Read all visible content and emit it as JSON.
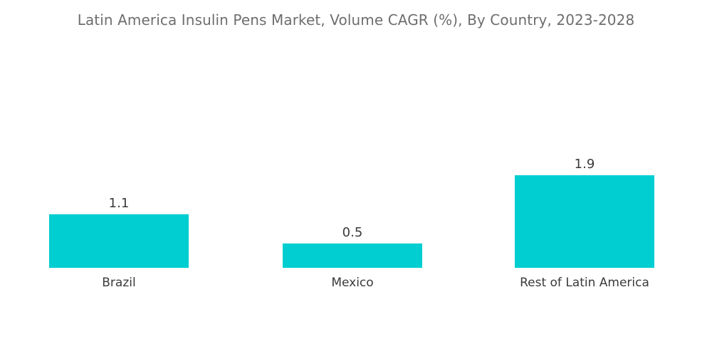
{
  "chart_data": {
    "type": "bar",
    "title": "Latin America Insulin Pens Market, Volume CAGR (%), By Country, 2023-2028",
    "categories": [
      "Brazil",
      "Mexico",
      "Rest of Latin America"
    ],
    "values": [
      1.1,
      0.5,
      1.9
    ],
    "value_labels": [
      "1.1",
      "0.5",
      "1.9"
    ],
    "xlabel": "",
    "ylabel": "",
    "ylim": [
      0,
      2.0
    ],
    "grid": false,
    "legend": "none",
    "bar_color": "#00CED1"
  }
}
